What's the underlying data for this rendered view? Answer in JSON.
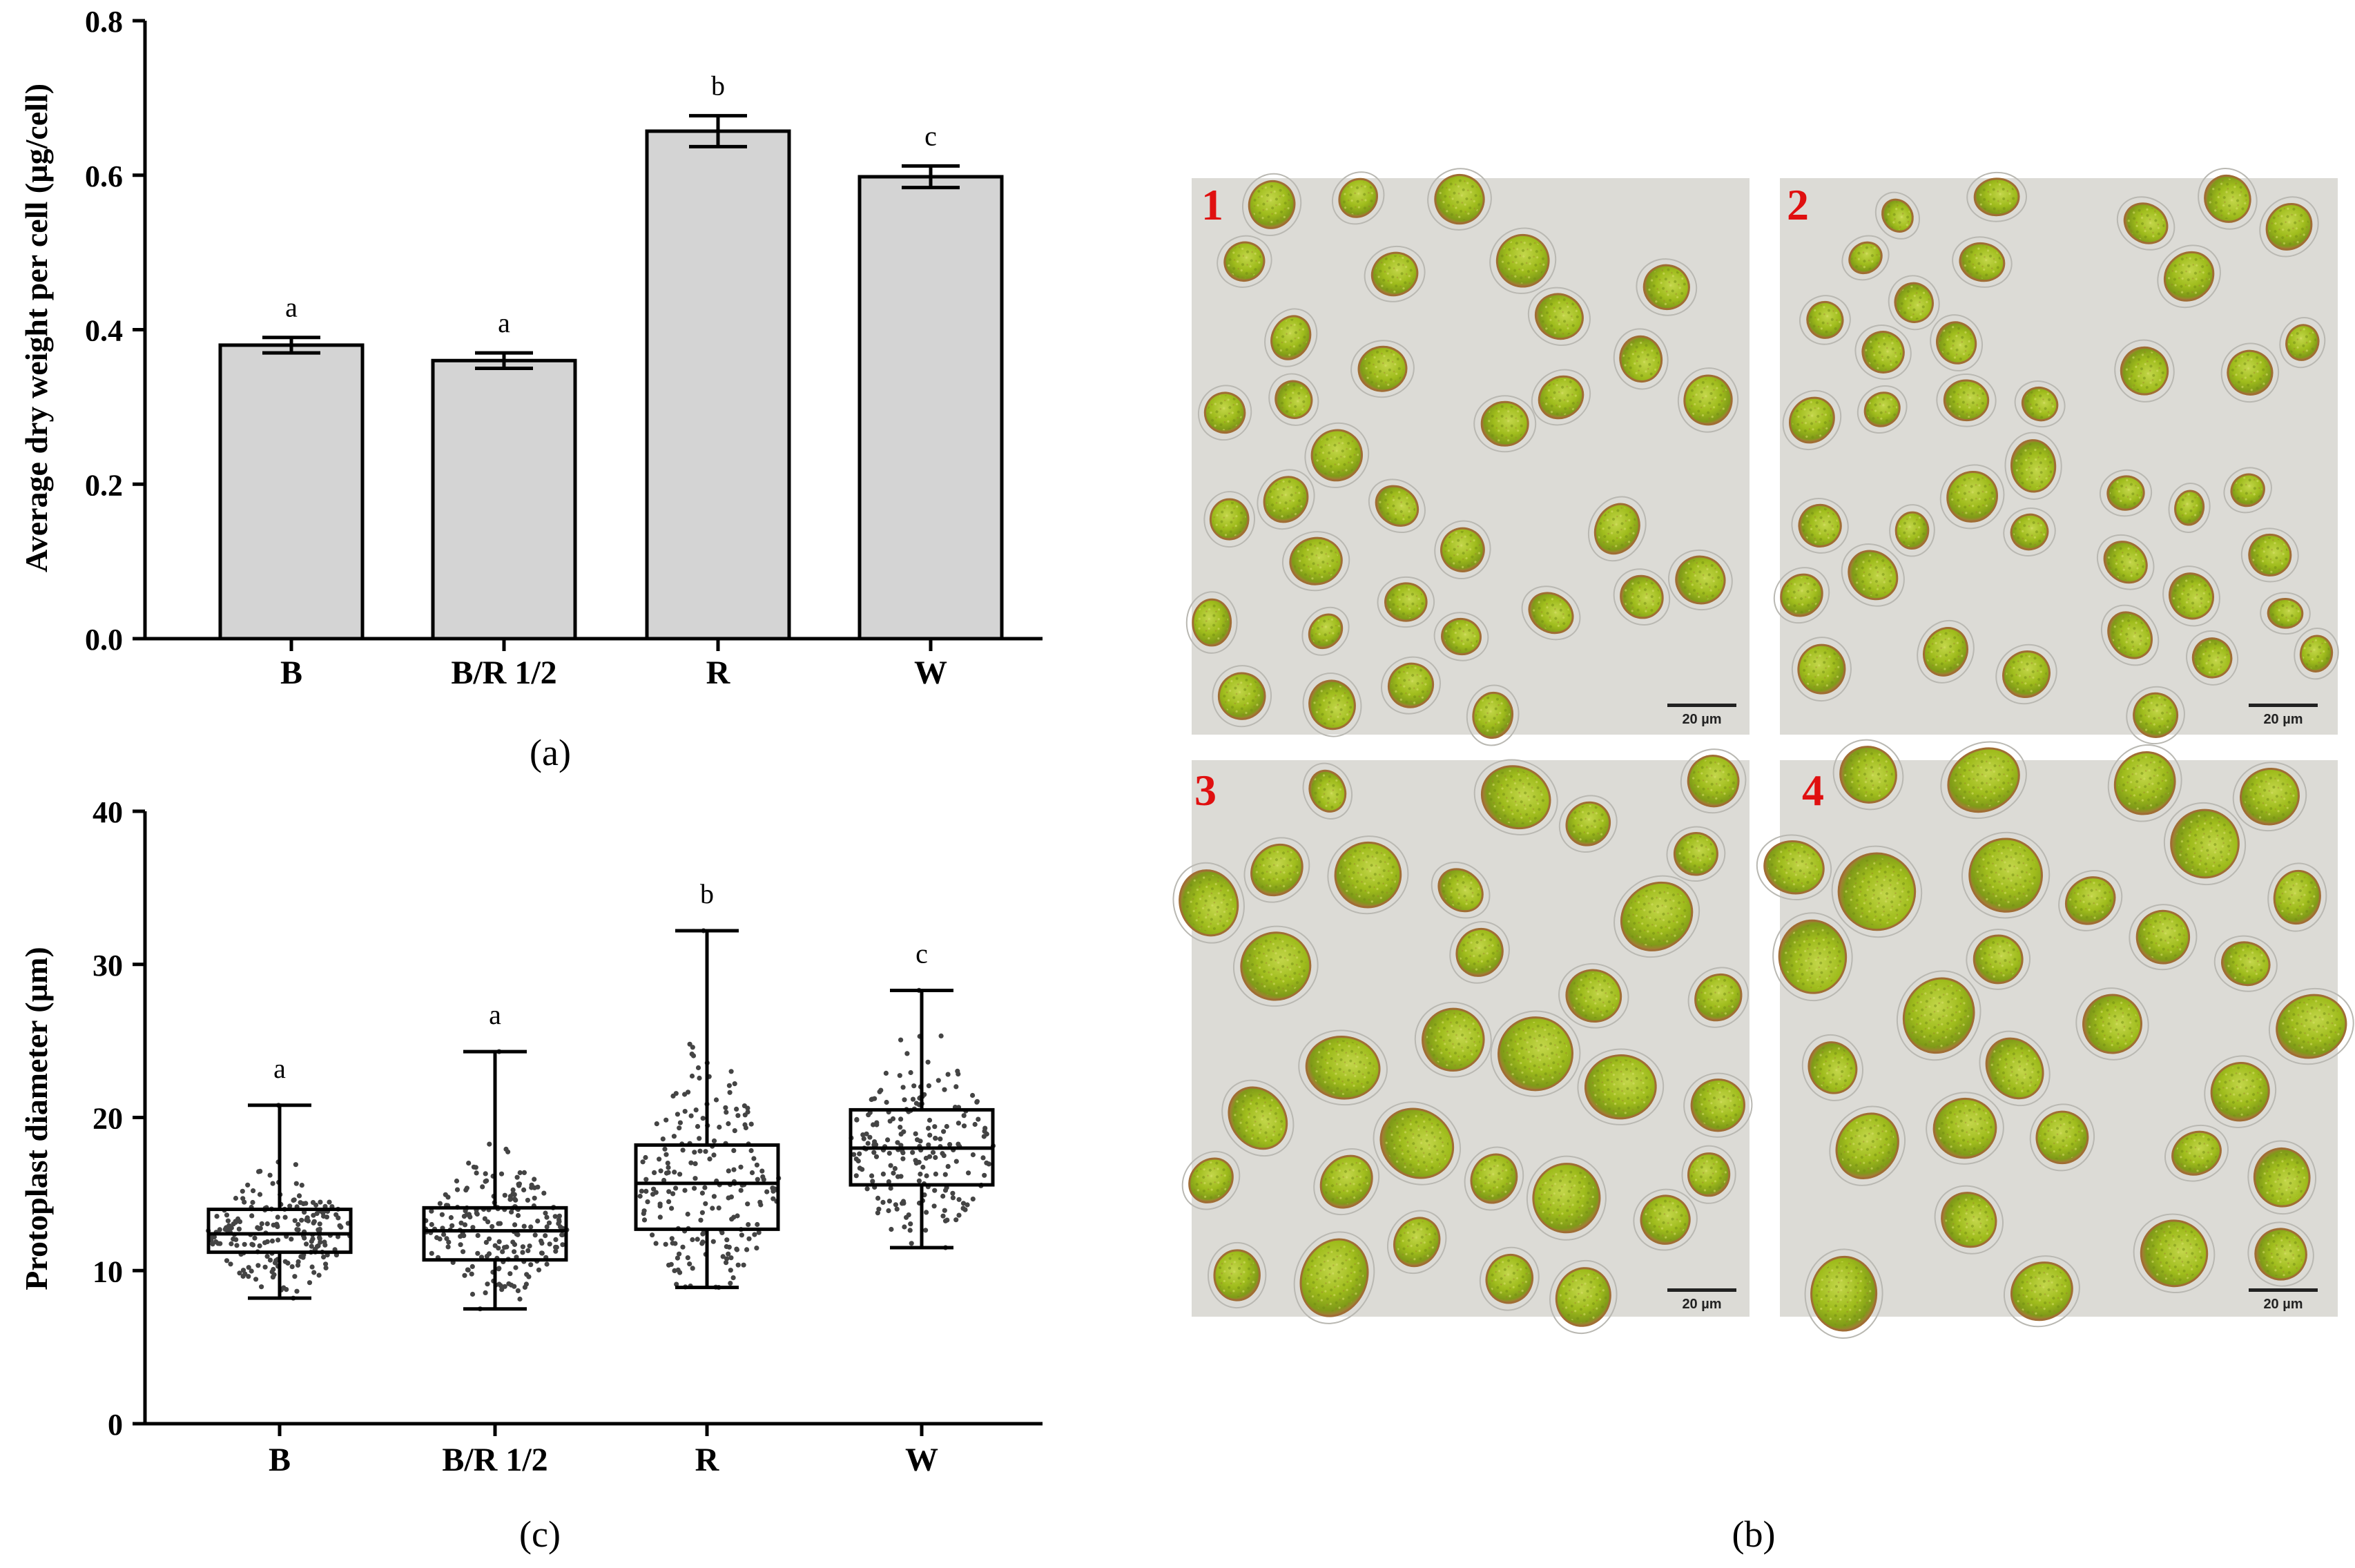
{
  "chart_data": [
    {
      "id": "a",
      "type": "bar",
      "panel_label": "(a)",
      "title": "",
      "xlabel": "",
      "ylabel": "Average dry weight per cell (µg/cell)",
      "categories": [
        "B",
        "B/R 1/2",
        "R",
        "W"
      ],
      "values": [
        0.38,
        0.36,
        0.657,
        0.598
      ],
      "errors": [
        0.01,
        0.01,
        0.02,
        0.014
      ],
      "significance": [
        "a",
        "a",
        "b",
        "c"
      ],
      "ylim": [
        0,
        0.8
      ],
      "yticks": [
        "0.0",
        "0.2",
        "0.4",
        "0.6",
        "0.8"
      ],
      "ytick_values": [
        0,
        0.2,
        0.4,
        0.6,
        0.8
      ],
      "bar_color": "#d4d4d4",
      "grid": false
    },
    {
      "id": "c",
      "type": "boxplot",
      "panel_label": "(c)",
      "title": "",
      "xlabel": "",
      "ylabel": "Protoplast diameter (µm)",
      "categories": [
        "B",
        "B/R 1/2",
        "R",
        "W"
      ],
      "min": [
        8.2,
        7.5,
        8.9,
        11.5
      ],
      "q1": [
        11.2,
        10.7,
        12.7,
        15.6
      ],
      "median": [
        12.4,
        12.6,
        15.7,
        18.0
      ],
      "q3": [
        14.0,
        14.1,
        18.2,
        20.5
      ],
      "max": [
        20.8,
        24.3,
        32.2,
        28.3
      ],
      "significance": [
        "a",
        "a",
        "b",
        "c"
      ],
      "ylim": [
        0,
        40
      ],
      "yticks": [
        "0",
        "10",
        "20",
        "30",
        "40"
      ],
      "ytick_values": [
        0,
        10,
        20,
        30,
        40
      ],
      "points_per_group": 200,
      "grid": false
    }
  ],
  "micrographs": {
    "panel_label": "(b)",
    "panels": [
      {
        "number": "1",
        "scale_bar": "20 µm"
      },
      {
        "number": "2",
        "scale_bar": "20 µm"
      },
      {
        "number": "3",
        "scale_bar": "20 µm"
      },
      {
        "number": "4",
        "scale_bar": "20 µm"
      }
    ],
    "background_color": "#dcdbd6",
    "cell_color": "#9fbf1e",
    "cell_edge_color": "#b07a3c"
  }
}
